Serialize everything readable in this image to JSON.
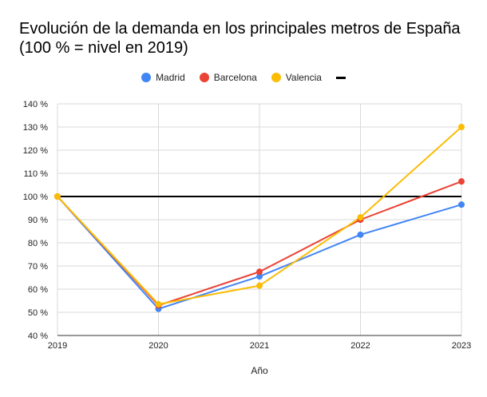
{
  "chart_data": {
    "type": "line",
    "title_lines": [
      "Evolución de la demanda en los principales metros de España",
      "(100 % = nivel en 2019)"
    ],
    "xlabel": "Año",
    "ylabel": "",
    "x": [
      "2019",
      "2020",
      "2021",
      "2022",
      "2023"
    ],
    "ylim": [
      40,
      140
    ],
    "yticks": [
      40,
      50,
      60,
      70,
      80,
      90,
      100,
      110,
      120,
      130,
      140
    ],
    "ytick_suffix": " %",
    "grid": true,
    "legend_position": "top",
    "series": [
      {
        "name": "Madrid",
        "color": "#4285f4",
        "values": [
          100,
          51.5,
          65.5,
          83.5,
          96.5
        ]
      },
      {
        "name": "Barcelona",
        "color": "#ea4335",
        "values": [
          100,
          53,
          67.5,
          90,
          106.5
        ]
      },
      {
        "name": "Valencia",
        "color": "#fbbc04",
        "values": [
          100,
          53.5,
          61.5,
          91,
          130
        ]
      }
    ],
    "reference_line": {
      "name": "",
      "value": 100,
      "color": "#000000"
    }
  }
}
